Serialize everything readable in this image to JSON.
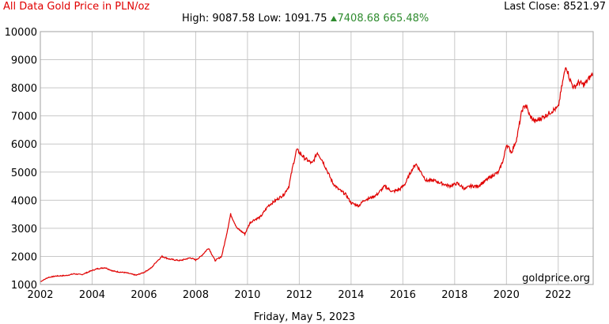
{
  "header": {
    "title": "All Data Gold Price in PLN/oz",
    "high_label": "High:",
    "high_value": "9087.58",
    "low_label": "Low:",
    "low_value": "1091.75",
    "change_value": "7408.68",
    "change_pct": "665.48%",
    "last_close_label": "Last Close:",
    "last_close_value": "8521.97"
  },
  "footer": {
    "date": "Friday, May 5, 2023"
  },
  "watermark": "goldprice.org",
  "colors": {
    "line": "#e00000",
    "title": "#e00000",
    "gain": "#2e8b2e",
    "grid": "#c8c8c8",
    "frame": "#a0a0a0"
  },
  "icons": {
    "change": "up-triangle-icon"
  },
  "chart_data": {
    "type": "line",
    "xlim": [
      2002,
      2023.35
    ],
    "ylim": [
      1000,
      10000
    ],
    "x_ticks": [
      "2002",
      "2004",
      "2006",
      "2008",
      "2010",
      "2012",
      "2014",
      "2016",
      "2018",
      "2020",
      "2022"
    ],
    "y_ticks": [
      "1000",
      "2000",
      "3000",
      "4000",
      "5000",
      "6000",
      "7000",
      "8000",
      "9000",
      "10000"
    ],
    "grid": true,
    "series": [
      {
        "x": [
          2002.0,
          2002.3,
          2002.6,
          2003.0,
          2003.3,
          2003.6,
          2004.0,
          2004.2,
          2004.5,
          2004.8,
          2005.0,
          2005.3,
          2005.7,
          2006.0,
          2006.3,
          2006.45,
          2006.7,
          2007.0,
          2007.4,
          2007.8,
          2008.0,
          2008.2,
          2008.5,
          2008.75,
          2009.0,
          2009.15,
          2009.35,
          2009.6,
          2009.9,
          2010.1,
          2010.25,
          2010.5,
          2010.8,
          2011.1,
          2011.4,
          2011.6,
          2011.75,
          2011.9,
          2012.2,
          2012.5,
          2012.7,
          2012.9,
          2013.1,
          2013.3,
          2013.5,
          2013.8,
          2014.0,
          2014.3,
          2014.5,
          2014.8,
          2015.0,
          2015.3,
          2015.6,
          2015.9,
          2016.1,
          2016.3,
          2016.5,
          2016.7,
          2016.9,
          2017.2,
          2017.5,
          2017.8,
          2018.1,
          2018.4,
          2018.6,
          2018.9,
          2019.2,
          2019.5,
          2019.7,
          2019.9,
          2020.0,
          2020.2,
          2020.4,
          2020.6,
          2020.75,
          2020.9,
          2021.1,
          2021.3,
          2021.5,
          2021.8,
          2022.0,
          2022.15,
          2022.3,
          2022.45,
          2022.6,
          2022.8,
          2023.0,
          2023.15,
          2023.25,
          2023.34
        ],
        "y": [
          1100,
          1250,
          1300,
          1320,
          1380,
          1350,
          1500,
          1560,
          1600,
          1480,
          1450,
          1420,
          1330,
          1430,
          1600,
          1780,
          2000,
          1900,
          1850,
          1950,
          1870,
          2000,
          2300,
          1850,
          2000,
          2600,
          3500,
          3000,
          2800,
          3200,
          3300,
          3400,
          3800,
          4000,
          4200,
          4500,
          5200,
          5800,
          5500,
          5300,
          5700,
          5400,
          5000,
          4600,
          4400,
          4200,
          3900,
          3800,
          4000,
          4100,
          4200,
          4500,
          4300,
          4400,
          4600,
          5000,
          5300,
          5000,
          4700,
          4700,
          4600,
          4500,
          4600,
          4400,
          4500,
          4500,
          4700,
          4900,
          5000,
          5500,
          6000,
          5700,
          6200,
          7200,
          7400,
          7000,
          6800,
          6900,
          7000,
          7200,
          7300,
          8100,
          8800,
          8300,
          8000,
          8200,
          8100,
          8300,
          8400,
          8520
        ]
      }
    ]
  }
}
